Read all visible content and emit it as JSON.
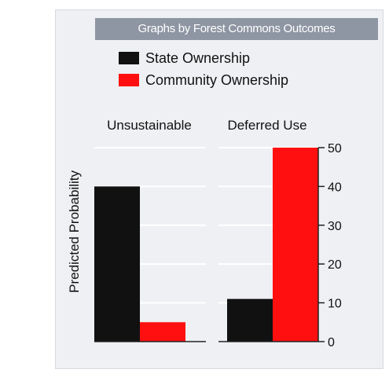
{
  "chart_data": {
    "type": "bar",
    "title": "Graphs by Forest Commons Outcomes",
    "ylabel": "Predicted Probability",
    "ylim": [
      0,
      50
    ],
    "yticks": [
      0,
      10,
      20,
      30,
      40,
      50
    ],
    "panels": [
      "Unsustainable",
      "Deferred Use"
    ],
    "series": [
      {
        "name": "State Ownership",
        "color": "#111111",
        "values": [
          40,
          11
        ]
      },
      {
        "name": "Community Ownership",
        "color": "#ff0f0f",
        "values": [
          5,
          50
        ]
      }
    ],
    "legend_position": "top",
    "grid": true
  }
}
